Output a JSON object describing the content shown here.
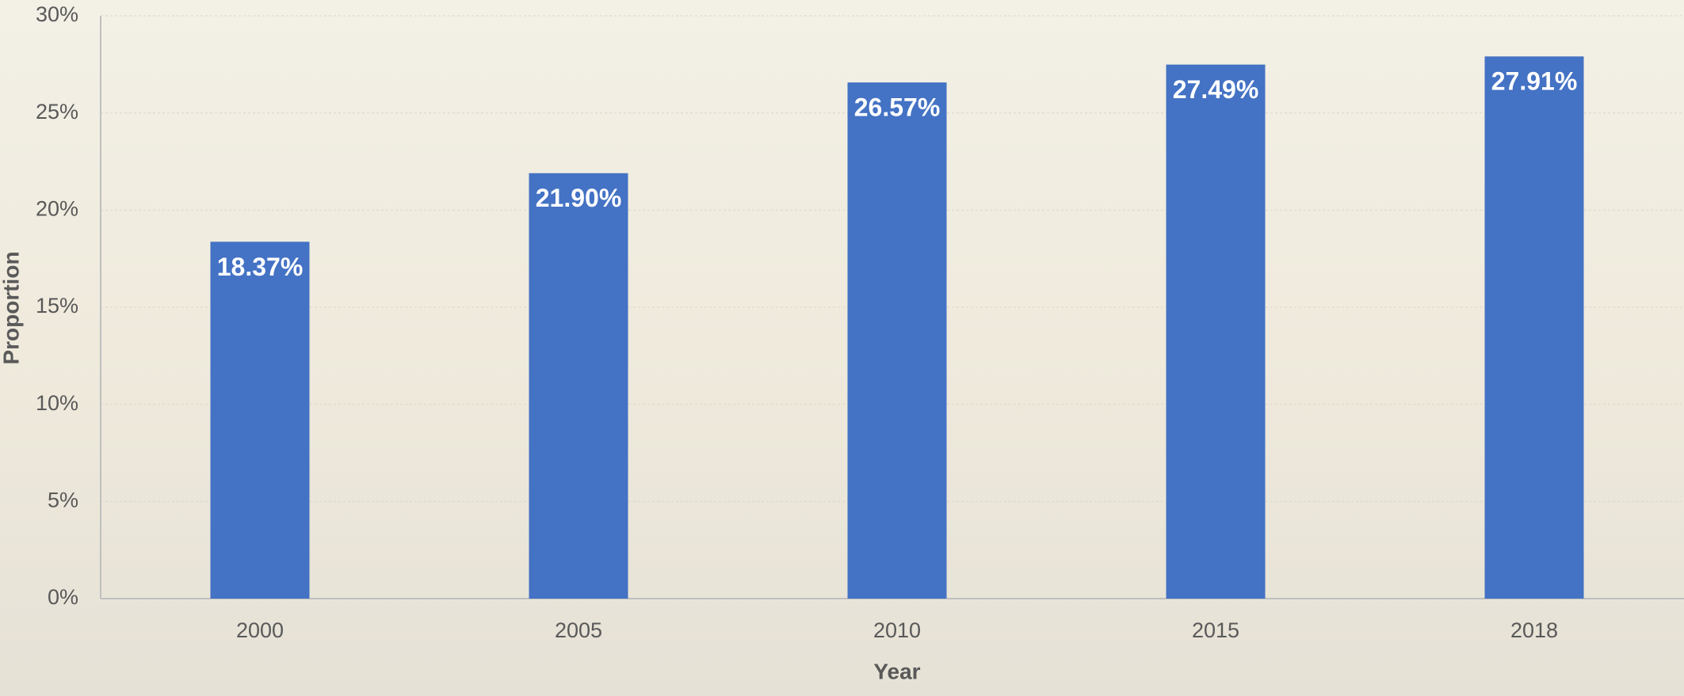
{
  "chart_data": {
    "type": "bar",
    "categories": [
      "2000",
      "2005",
      "2010",
      "2015",
      "2018"
    ],
    "values": [
      18.37,
      21.9,
      26.57,
      27.49,
      27.91
    ],
    "value_labels": [
      "18.37%",
      "21.90%",
      "26.57%",
      "27.49%",
      "27.91%"
    ],
    "color": "#4472c4",
    "x_label": "Year",
    "y_label": "Proportion",
    "ylim": [
      0,
      30
    ],
    "yticks": [
      {
        "value": 0,
        "label": "0%"
      },
      {
        "value": 5,
        "label": "5%"
      },
      {
        "value": 10,
        "label": "10%"
      },
      {
        "value": 15,
        "label": "15%"
      },
      {
        "value": 20,
        "label": "20%"
      },
      {
        "value": 25,
        "label": "25%"
      },
      {
        "value": 30,
        "label": "30%"
      }
    ],
    "grid": true
  }
}
